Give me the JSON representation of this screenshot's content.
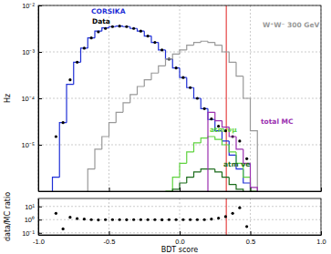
{
  "chart_data": [
    {
      "type": "histogram",
      "ylabel": "Hz",
      "bins": [
        -1,
        -0.95,
        -0.9,
        -0.85,
        -0.8,
        -0.75,
        -0.7,
        -0.65,
        -0.6,
        -0.55,
        -0.5,
        -0.45,
        -0.4,
        -0.35,
        -0.3,
        -0.25,
        -0.2,
        -0.15,
        -0.1,
        -0.05,
        0,
        0.05,
        0.1,
        0.15,
        0.2,
        0.25,
        0.3,
        0.35,
        0.4,
        0.45,
        0.5,
        0.55,
        0.6,
        0.65,
        0.7,
        0.75,
        0.8,
        0.85,
        0.9,
        0.95,
        1
      ],
      "xlim": [
        -1,
        1
      ],
      "xticks": [
        -1,
        -0.5,
        0,
        0.5,
        1
      ],
      "ylim": [
        1e-06,
        0.01
      ],
      "yticks": [
        {
          "value": 1e-05,
          "label": "10⁻⁵"
        },
        {
          "value": 0.0001,
          "label": "10⁻⁴"
        },
        {
          "value": 0.001,
          "label": "10⁻³"
        },
        {
          "value": 0.01,
          "label": "10⁻²"
        }
      ],
      "log": "y",
      "grid": true,
      "tick_labels": "y",
      "vline": 0.33,
      "series": [
        {
          "name": "CORSIKA",
          "color": "#1f2fd6",
          "type": "step",
          "values": [
            null,
            null,
            2e-06,
            3e-05,
            0.0002,
            0.0006,
            0.0012,
            0.002,
            0.0028,
            0.0033,
            0.0035,
            0.0036,
            0.0035,
            0.0032,
            0.0028,
            0.0022,
            0.0016,
            0.0011,
            0.0007,
            0.00045,
            0.00028,
            0.00017,
            0.0001,
            6e-05,
            3.5e-05,
            2e-05,
            1.2e-05,
            6e-06,
            3e-06,
            1.5e-06,
            null,
            null,
            null,
            null,
            null,
            null,
            null,
            null,
            null,
            null
          ]
        },
        {
          "name": "Data",
          "color": "#000000",
          "type": "scatter",
          "marker": "circle",
          "values": [
            null,
            null,
            1.5e-05,
            3e-05,
            0.00025,
            0.0006,
            0.0012,
            0.002,
            0.0027,
            0.0032,
            0.0035,
            0.0036,
            0.0035,
            0.0032,
            0.0028,
            0.0022,
            0.0016,
            0.0011,
            0.0007,
            0.00045,
            0.00028,
            0.00017,
            0.0001,
            6e-05,
            3.6e-05,
            2.5e-05,
            2e-05,
            1.5e-05,
            1.2e-05,
            5e-06,
            null,
            null,
            null,
            null,
            null,
            null,
            null,
            null,
            null,
            null
          ]
        },
        {
          "name": "W⁺W⁻ 300 GeV",
          "color": "#999999",
          "type": "step",
          "values": [
            null,
            null,
            null,
            null,
            null,
            null,
            null,
            3e-06,
            8e-06,
            1.5e-05,
            3e-05,
            5e-05,
            8e-05,
            0.00012,
            0.00018,
            0.00025,
            0.00035,
            0.0005,
            0.0007,
            0.0009,
            0.0011,
            0.0014,
            0.0016,
            0.0017,
            0.0016,
            0.0014,
            0.001,
            0.0006,
            0.0003,
            0.0001,
            2e-05,
            null,
            null,
            null,
            null,
            null,
            null,
            null,
            null,
            null
          ]
        },
        {
          "name": "atm νμ",
          "color": "#5fd33f",
          "type": "step",
          "values": [
            null,
            null,
            null,
            null,
            null,
            null,
            null,
            null,
            null,
            null,
            null,
            null,
            null,
            null,
            null,
            null,
            null,
            null,
            1e-06,
            2e-06,
            4e-06,
            7e-06,
            1.1e-05,
            1.4e-05,
            1.5e-05,
            1.3e-05,
            1e-05,
            7e-06,
            4e-06,
            2e-06,
            1e-06,
            null,
            null,
            null,
            null,
            null,
            null,
            null,
            null,
            null
          ]
        },
        {
          "name": "atm νe",
          "color": "#1a6b1a",
          "type": "step",
          "values": [
            null,
            null,
            null,
            null,
            null,
            null,
            null,
            null,
            null,
            null,
            null,
            null,
            null,
            null,
            null,
            null,
            null,
            null,
            null,
            1.1e-06,
            1.5e-06,
            2e-06,
            2.6e-06,
            3e-06,
            3e-06,
            2.6e-06,
            2e-06,
            1.4e-06,
            1.1e-06,
            null,
            null,
            null,
            null,
            null,
            null,
            null,
            null,
            null,
            null,
            null
          ]
        },
        {
          "name": "total MC",
          "color": "#9b30b0",
          "type": "step",
          "values": [
            null,
            null,
            null,
            null,
            null,
            null,
            null,
            null,
            null,
            null,
            null,
            null,
            null,
            null,
            null,
            null,
            null,
            null,
            null,
            null,
            null,
            null,
            null,
            null,
            5e-05,
            3.3e-05,
            2.4e-05,
            1.5e-05,
            8e-06,
            4e-06,
            1.2e-06,
            null,
            null,
            null,
            null,
            null,
            null,
            null,
            null,
            null
          ]
        }
      ]
    },
    {
      "type": "scatter",
      "xlabel": "BDT score",
      "ylabel": "data/MC ratio",
      "bins": [
        -1,
        -0.95,
        -0.9,
        -0.85,
        -0.8,
        -0.75,
        -0.7,
        -0.65,
        -0.6,
        -0.55,
        -0.5,
        -0.45,
        -0.4,
        -0.35,
        -0.3,
        -0.25,
        -0.2,
        -0.15,
        -0.1,
        -0.05,
        0,
        0.05,
        0.1,
        0.15,
        0.2,
        0.25,
        0.3,
        0.35,
        0.4,
        0.45,
        0.5,
        0.55,
        0.6,
        0.65,
        0.7,
        0.75,
        0.8,
        0.85,
        0.9,
        0.95,
        1
      ],
      "xlim": [
        -1,
        1
      ],
      "xticks": [
        {
          "value": -1,
          "label": "-1.0"
        },
        {
          "value": -0.5,
          "label": "-0.5"
        },
        {
          "value": 0,
          "label": "0.0"
        },
        {
          "value": 0.5,
          "label": "0.5"
        },
        {
          "value": 1,
          "label": "1.0"
        }
      ],
      "ylim": [
        0.07,
        40
      ],
      "yticks": [
        {
          "value": 0.1,
          "label": "10⁻¹"
        },
        {
          "value": 1,
          "label": "10⁰"
        },
        {
          "value": 10,
          "label": "10¹"
        }
      ],
      "log": "y",
      "grid": true,
      "vline": 0.33,
      "color": "#000000",
      "marker": "circle",
      "values": [
        null,
        null,
        3,
        0.2,
        1.5,
        1.2,
        1.1,
        1.0,
        0.95,
        1.0,
        1.0,
        1.0,
        0.98,
        1.0,
        1.0,
        1.0,
        1.0,
        0.97,
        1.0,
        1.0,
        1.0,
        1.0,
        1.0,
        1.0,
        1.1,
        1.3,
        1.7,
        3,
        8,
        0.3,
        null,
        null,
        null,
        null,
        null,
        null,
        null,
        null,
        null,
        null
      ]
    }
  ]
}
